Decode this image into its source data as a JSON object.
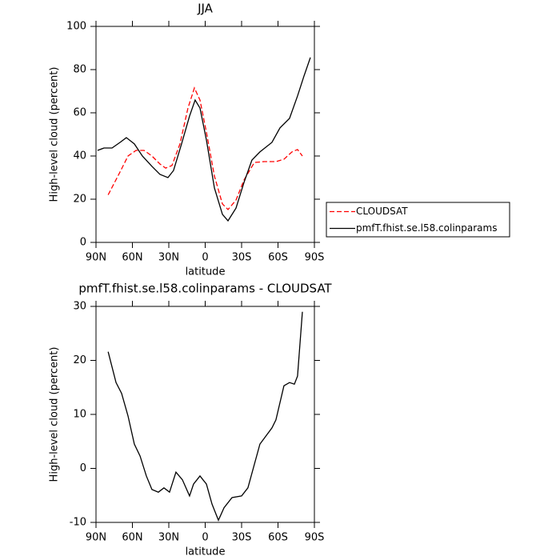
{
  "chart_data": [
    {
      "type": "line",
      "title": "JJA",
      "xlabel": "latitude",
      "ylabel": "High-level cloud (percent)",
      "xlim": [
        90,
        -90
      ],
      "xticks": [
        {
          "value": 90,
          "label": "90N"
        },
        {
          "value": 60,
          "label": "60N"
        },
        {
          "value": 30,
          "label": "30N"
        },
        0,
        {
          "value": -30,
          "label": "30S"
        },
        {
          "value": -60,
          "label": "60S"
        },
        {
          "value": -90,
          "label": "90S"
        }
      ],
      "ylim": [
        0,
        100
      ],
      "yticks": [
        0,
        20,
        40,
        60,
        80,
        100
      ],
      "legend": "right",
      "series": [
        {
          "name": "CLOUDSAT",
          "color": "#ff0000",
          "dashed": true,
          "x": [
            80,
            70.2,
            63.6,
            57,
            50.4,
            43.9,
            37.3,
            32.6,
            27.4,
            20.8,
            14.2,
            8.9,
            4.3,
            -1,
            -7.6,
            -14.2,
            -18.8,
            -25.4,
            -32,
            -40.5,
            -48.4,
            -58.3,
            -64.9,
            -71.5,
            -76.1,
            -80.1
          ],
          "values": [
            22,
            32.6,
            40,
            42.6,
            42.6,
            40,
            36.3,
            34.4,
            35.6,
            45.6,
            62.2,
            71.5,
            65.9,
            51,
            30.7,
            17.8,
            15.2,
            19.6,
            28.9,
            37,
            37.4,
            37.4,
            38.5,
            41.9,
            43,
            40
          ]
        },
        {
          "name": "pmfT.fhist.se.l58.colinparams",
          "color": "#000000",
          "dashed": false,
          "x": [
            88.7,
            83.4,
            76.8,
            70.2,
            65,
            58.4,
            51.8,
            43.9,
            37.3,
            30.7,
            26.1,
            19.5,
            12.9,
            8.3,
            4.3,
            -1,
            -7.6,
            -14.2,
            -18.8,
            -25.4,
            -32,
            -38.5,
            -45.1,
            -55,
            -61.6,
            -69.5,
            -76.1,
            -81.4,
            -86.7
          ],
          "values": [
            42.6,
            43.7,
            43.7,
            46.3,
            48.5,
            45.6,
            40,
            35.2,
            31.5,
            30,
            33.3,
            45.6,
            58.5,
            65.9,
            62.2,
            47.4,
            25.2,
            13,
            10,
            15.9,
            27.8,
            38.1,
            41.9,
            46.3,
            53,
            57.4,
            67.8,
            77,
            85.6
          ]
        }
      ]
    },
    {
      "type": "line",
      "title": "pmfT.fhist.se.l58.colinparams - CLOUDSAT",
      "xlabel": "latitude",
      "ylabel": "High-level cloud (percent)",
      "xlim": [
        90,
        -90
      ],
      "xticks": [
        {
          "value": 90,
          "label": "90N"
        },
        {
          "value": 60,
          "label": "60N"
        },
        {
          "value": 30,
          "label": "30N"
        },
        0,
        {
          "value": -30,
          "label": "30S"
        },
        {
          "value": -60,
          "label": "60S"
        },
        {
          "value": -90,
          "label": "90S"
        }
      ],
      "ylim": [
        -10,
        30
      ],
      "yticks": [
        -10,
        0,
        10,
        20,
        30
      ],
      "color": "#000000",
      "x": [
        80,
        73.5,
        68.9,
        63.6,
        58.4,
        53.7,
        48.5,
        43.9,
        38.6,
        34,
        29.4,
        24.1,
        18.8,
        12.9,
        9.6,
        4.3,
        -1,
        -5.6,
        -10.9,
        -15.5,
        -22.1,
        -30,
        -35.2,
        -45.1,
        -55,
        -58.3,
        -64.9,
        -69.5,
        -73.5,
        -76.1,
        -80.1
      ],
      "values": [
        21.6,
        15.9,
        13.9,
        9.7,
        4.5,
        2.3,
        -1.4,
        -3.9,
        -4.4,
        -3.6,
        -4.4,
        -0.7,
        -2.1,
        -5.1,
        -2.9,
        -1.4,
        -2.9,
        -6.6,
        -9.6,
        -7.3,
        -5.4,
        -5.1,
        -3.6,
        4.5,
        7.5,
        9,
        15.3,
        15.9,
        15.6,
        17.1,
        29
      ]
    }
  ]
}
